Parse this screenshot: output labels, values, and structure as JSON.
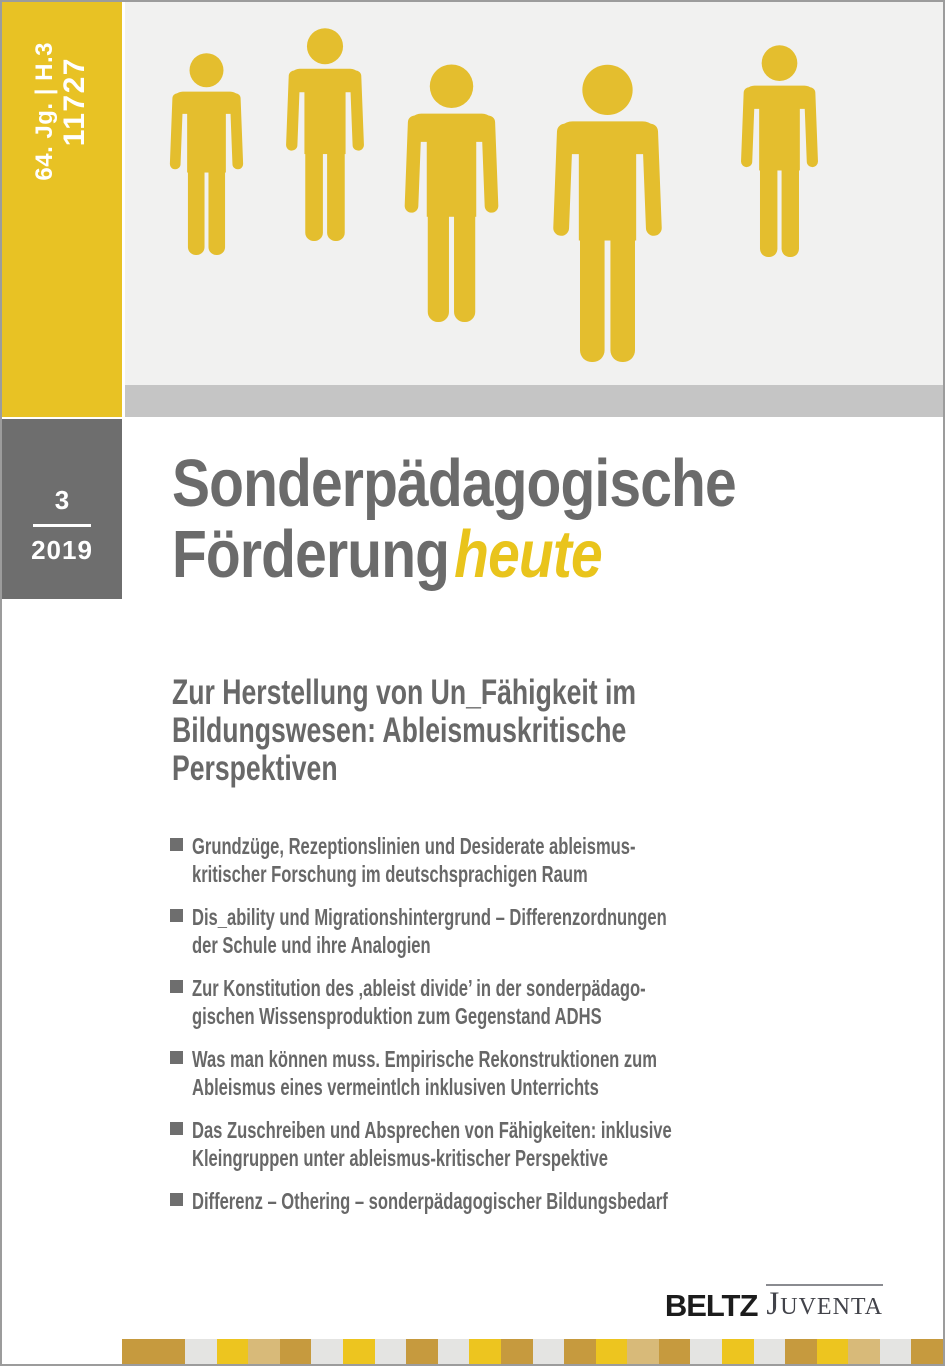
{
  "cover": {
    "masthead": {
      "line1": "64. Jg. | H.3",
      "line2": "11727"
    },
    "issue": {
      "number": "3",
      "year": "2019"
    },
    "journal": {
      "title_line1": "Sonderpädagogische",
      "title_line2": "Förderung",
      "title_accent": "heute"
    },
    "article_title": {
      "line1": "Zur Herstellung von Un_Fähigkeit im",
      "line2": "Bildungswesen: Ableismuskritische",
      "line3": "Perspektiven"
    },
    "contents": [
      {
        "line1": "Grundzüge, Rezeptionslinien und Desiderate ableismus-",
        "line2": "kritischer Forschung im deutschsprachigen Raum"
      },
      {
        "line1": "Dis_ability und Migrationshintergrund – Differenzordnungen",
        "line2": "der Schule und ihre Analogien"
      },
      {
        "line1": "Zur Konstitution des ‚ableist divide’ in der sonderpädago-",
        "line2": "gischen Wissensproduktion zum Gegenstand ADHS"
      },
      {
        "line1": "Was man können muss. Empirische Rekonstruktionen zum",
        "line2": "Ableismus eines vermeintlch inklusiven Unterrichts"
      },
      {
        "line1": "Das Zuschreiben und Absprechen von Fähigkeiten: inklusive",
        "line2": "Kleingruppen unter ableismus-kritischer Perspektive"
      },
      {
        "line1": "Differenz – Othering – sonderpädagogischer Bildungsbedarf",
        "line2": ""
      }
    ],
    "publisher": {
      "beltz": "BELTZ",
      "juventa_initial": "J",
      "juventa_rest": "UVENTA"
    },
    "colors": {
      "accent_yellow": "#E8C224",
      "figure_yellow": "#E4BE2E",
      "title_accent_yellow": "#E9C41C",
      "dark_gray": "#6E6E6E",
      "panel_gray": "#F1F1F0",
      "strip_gray": "#C5C5C5",
      "text_gray": "#686868"
    },
    "footer_stripe": {
      "colors": {
        "gold": "#C69A3E",
        "gray": "#E4E4E2",
        "yellow": "#EDC51F",
        "tan": "#D8BA79"
      },
      "pattern": [
        {
          "color": "gold",
          "span": 2
        },
        {
          "color": "gray",
          "span": 1
        },
        {
          "color": "yellow",
          "span": 1
        },
        {
          "color": "tan",
          "span": 1
        },
        {
          "color": "gold",
          "span": 1
        },
        {
          "color": "gray",
          "span": 1
        },
        {
          "color": "yellow",
          "span": 1
        },
        {
          "color": "gray",
          "span": 1
        },
        {
          "color": "gold",
          "span": 1
        },
        {
          "color": "gray",
          "span": 1
        },
        {
          "color": "yellow",
          "span": 1
        },
        {
          "color": "gold",
          "span": 1
        },
        {
          "color": "gray",
          "span": 1
        },
        {
          "color": "gold",
          "span": 1
        },
        {
          "color": "yellow",
          "span": 1
        },
        {
          "color": "tan",
          "span": 1
        },
        {
          "color": "gold",
          "span": 1
        },
        {
          "color": "gray",
          "span": 1
        },
        {
          "color": "yellow",
          "span": 1
        },
        {
          "color": "gray",
          "span": 1
        },
        {
          "color": "gold",
          "span": 1
        },
        {
          "color": "yellow",
          "span": 1
        },
        {
          "color": "tan",
          "span": 1
        },
        {
          "color": "gray",
          "span": 1
        },
        {
          "color": "gold",
          "span": 1
        }
      ]
    }
  }
}
